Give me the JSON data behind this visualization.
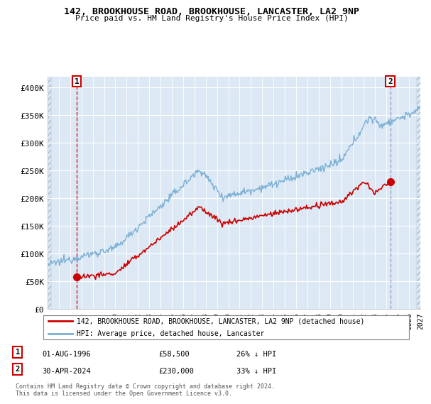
{
  "title": "142, BROOKHOUSE ROAD, BROOKHOUSE, LANCASTER, LA2 9NP",
  "subtitle": "Price paid vs. HM Land Registry's House Price Index (HPI)",
  "ylim": [
    0,
    420000
  ],
  "yticks": [
    0,
    50000,
    100000,
    150000,
    200000,
    250000,
    300000,
    350000,
    400000
  ],
  "ytick_labels": [
    "£0",
    "£50K",
    "£100K",
    "£150K",
    "£200K",
    "£250K",
    "£300K",
    "£350K",
    "£400K"
  ],
  "sale1_date": 1996.58,
  "sale1_price": 58500,
  "sale2_date": 2024.33,
  "sale2_price": 230000,
  "hpi_color": "#7bafd4",
  "price_color": "#cc0000",
  "sale1_vline_color": "#cc0000",
  "sale2_vline_color": "#8899bb",
  "bg_color": "#dce9f5",
  "grid_color": "white",
  "legend_line1": "142, BROOKHOUSE ROAD, BROOKHOUSE, LANCASTER, LA2 9NP (detached house)",
  "legend_line2": "HPI: Average price, detached house, Lancaster",
  "footer": "Contains HM Land Registry data © Crown copyright and database right 2024.\nThis data is licensed under the Open Government Licence v3.0.",
  "xstart": 1994,
  "xend": 2027
}
